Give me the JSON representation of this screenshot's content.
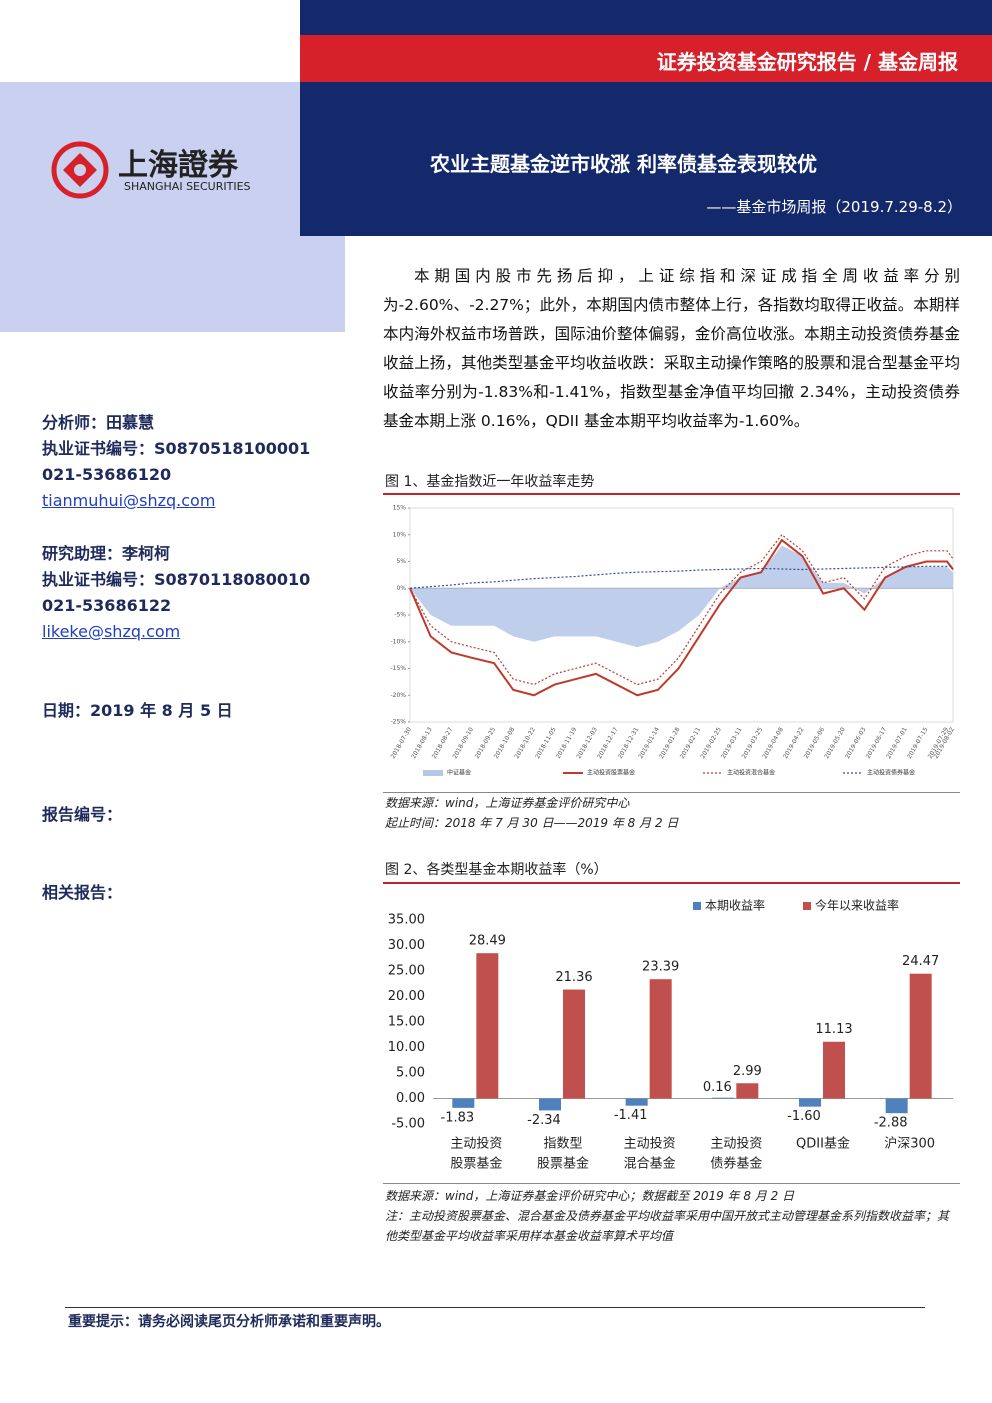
{
  "header": {
    "banner": "证券投资基金研究报告 / 基金周报",
    "title": "农业主题基金逆市收涨 利率债基金表现较优",
    "subtitle": "——基金市场周报（2019.7.29-8.2）"
  },
  "logo": {
    "name": "上海證券",
    "english": "SHANGHAI SECURITIES"
  },
  "sidebar": {
    "analyst": [
      "分析师：田慕慧",
      "执业证书编号：S0870518100001",
      "021-53686120",
      "tianmuhui@shzq.com"
    ],
    "assistant": [
      "研究助理：李柯柯",
      "执业证书编号：S0870118080010",
      "021-53686122",
      "likeke@shzq.com"
    ],
    "date": "日期：2019 年 8 月 5 日",
    "report_no": "报告编号：",
    "related": "相关报告："
  },
  "body": "本期国内股市先扬后抑，上证综指和深证成指全周收益率分别为-2.60%、-2.27%；此外，本期国内债市整体上行，各指数均取得正收益。本期样本内海外权益市场普跌，国际油价整体偏弱，金价高位收涨。本期主动投资债券基金收益上扬，其他类型基金平均收益收跌：采取主动操作策略的股票和混合型基金平均收益率分别为-1.83%和-1.41%，指数型基金净值平均回撤 2.34%，主动投资债券基金本期上涨 0.16%，QDII 基金本期平均收益率为-1.60%。",
  "chart_data": [
    {
      "type": "line",
      "title": "图 1、基金指数近一年收益率走势",
      "x": [
        "2018-07-30",
        "2018-08-13",
        "2018-08-27",
        "2018-09-10",
        "2018-09-25",
        "2018-10-08",
        "2018-10-22",
        "2018-11-05",
        "2018-11-19",
        "2018-12-03",
        "2018-12-17",
        "2018-12-31",
        "2019-01-14",
        "2019-01-28",
        "2019-02-11",
        "2019-02-25",
        "2019-03-11",
        "2019-03-25",
        "2019-04-08",
        "2019-04-22",
        "2019-05-06",
        "2019-05-20",
        "2019-06-03",
        "2019-06-17",
        "2019-07-01",
        "2019-07-15",
        "2019-07-29",
        "2019-08-02"
      ],
      "series": [
        {
          "name": "中证基金",
          "style": "area",
          "color": "#b4c7e7",
          "values": [
            0,
            -5,
            -7,
            -7,
            -7,
            -9,
            -10,
            -9,
            -9,
            -9,
            -10,
            -11,
            -10,
            -8,
            -5,
            0,
            2,
            3,
            8,
            6,
            1,
            1,
            -1,
            2,
            4,
            4,
            4,
            3
          ]
        },
        {
          "name": "主动投资股票基金",
          "style": "solid",
          "color": "#c0392b",
          "values": [
            0,
            -9,
            -12,
            -13,
            -14,
            -19,
            -20,
            -18,
            -17,
            -16,
            -18,
            -20,
            -19,
            -15,
            -9,
            -3,
            2,
            3,
            9,
            6,
            -1,
            0,
            -4,
            2,
            4,
            5,
            5,
            3.5
          ]
        },
        {
          "name": "主动投资混合基金",
          "style": "dotted",
          "color": "#c0392b",
          "values": [
            0,
            -7,
            -10,
            -11,
            -12,
            -17,
            -18,
            -16,
            -15,
            -14,
            -16,
            -18,
            -17,
            -13,
            -7,
            -1,
            3,
            5,
            10,
            7,
            1,
            2,
            -2,
            4,
            6,
            7,
            7,
            5.5
          ]
        },
        {
          "name": "主动投资债券基金",
          "style": "dotted",
          "color": "#2e4a9e",
          "values": [
            0,
            0.3,
            0.6,
            1,
            1.2,
            1.5,
            1.8,
            2,
            2.2,
            2.5,
            2.8,
            3,
            3.1,
            3.2,
            3.4,
            3.5,
            3.6,
            3.7,
            3.6,
            3.5,
            3.6,
            3.7,
            3.8,
            3.9,
            4,
            4.1,
            4.1,
            4.2
          ]
        }
      ],
      "ylim": [
        -25,
        15
      ],
      "yticks": [
        {
          "value": 15,
          "label": "15%"
        },
        {
          "value": 10,
          "label": "10%"
        },
        {
          "value": 5,
          "label": "5%"
        },
        {
          "value": 0,
          "label": "0%"
        },
        {
          "value": -5,
          "label": "-5%"
        },
        {
          "value": -10,
          "label": "-10%"
        },
        {
          "value": -15,
          "label": "-15%"
        },
        {
          "value": -20,
          "label": "-20%"
        },
        {
          "value": -25,
          "label": "-25%"
        }
      ],
      "source": [
        "数据来源：wind，上海证券基金评价研究中心",
        "起止时间：2018 年 7 月 30 日——2019 年 8 月 2 日"
      ]
    },
    {
      "type": "bar",
      "title": "图 2、各类型基金本期收益率（%）",
      "categories": [
        [
          "主动投资",
          "股票基金"
        ],
        [
          "指数型",
          "股票基金"
        ],
        [
          "主动投资",
          "混合基金"
        ],
        [
          "主动投资",
          "债券基金"
        ],
        [
          "QDII基金"
        ],
        [
          "沪深300"
        ]
      ],
      "series": [
        {
          "name": "本期收益率",
          "color": "#4f81bd",
          "values": [
            -1.83,
            -2.34,
            -1.41,
            0.16,
            -1.6,
            -2.88
          ],
          "value_labels": [
            "-1.83",
            "-2.34",
            "-1.41",
            "0.16",
            "-1.60",
            "-2.88"
          ]
        },
        {
          "name": "今年以来收益率",
          "color": "#c0504d",
          "values": [
            28.49,
            21.36,
            23.39,
            2.99,
            11.13,
            24.47
          ],
          "value_labels": [
            "28.49",
            "21.36",
            "23.39",
            "2.99",
            "11.13",
            "24.47"
          ]
        }
      ],
      "ylim": [
        -5,
        35
      ],
      "yticks": [
        {
          "value": 35,
          "label": "35.00"
        },
        {
          "value": 30,
          "label": "30.00"
        },
        {
          "value": 25,
          "label": "25.00"
        },
        {
          "value": 20,
          "label": "20.00"
        },
        {
          "value": 15,
          "label": "15.00"
        },
        {
          "value": 10,
          "label": "10.00"
        },
        {
          "value": 5,
          "label": "5.00"
        },
        {
          "value": 0,
          "label": "0.00"
        },
        {
          "value": -5,
          "label": "-5.00"
        }
      ],
      "source": [
        "数据来源：wind，上海证券基金评价研究中心；数据截至 2019 年 8 月 2 日",
        "注：主动投资股票基金、混合基金及债券基金平均收益率采用中国开放式主动管理基金系列指数收益率；其他类型基金平均收益率采用样本基金收益率算术平均值"
      ]
    }
  ],
  "footer": "重要提示：请务必阅读尾页分析师承诺和重要声明。"
}
